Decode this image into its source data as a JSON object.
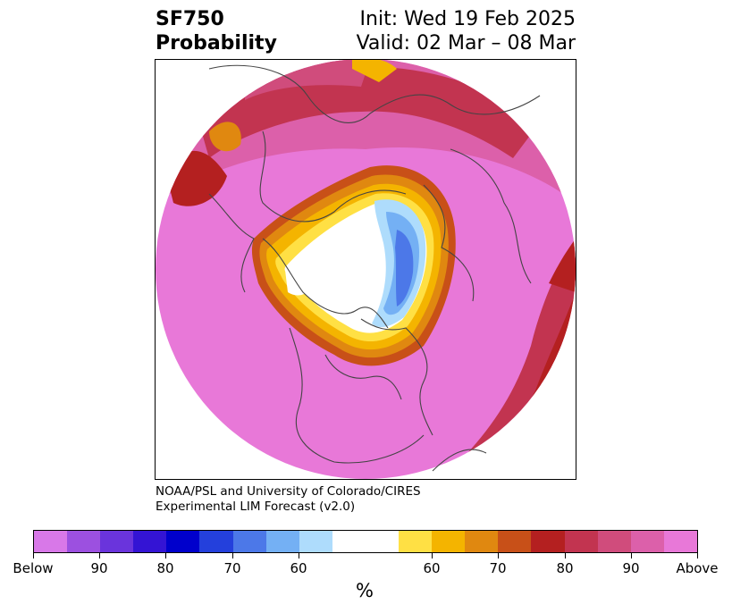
{
  "header": {
    "title_line1": "SF750",
    "title_line2": "Probability",
    "init": "Init: Wed 19 Feb 2025",
    "valid": "Valid: 02 Mar – 08 Mar"
  },
  "credit": {
    "line1": "NOAA/PSL and University of Colorado/CIRES",
    "line2": "Experimental LIM Forecast (v2.0)"
  },
  "colorbar": {
    "unit": "%",
    "tick_labels": [
      "Below",
      "90",
      "80",
      "70",
      "60",
      "60",
      "70",
      "80",
      "90",
      "Above"
    ],
    "colors": [
      "#d878e8",
      "#9c50e0",
      "#6a34dc",
      "#3414d4",
      "#0000cc",
      "#2440dc",
      "#4c78e8",
      "#74b0f4",
      "#aedcfc",
      "#ffffff",
      "#ffe044",
      "#f4b400",
      "#e08810",
      "#c85018",
      "#b42020",
      "#c23450",
      "#d04c7c",
      "#dc60aa",
      "#e878d8"
    ]
  }
}
